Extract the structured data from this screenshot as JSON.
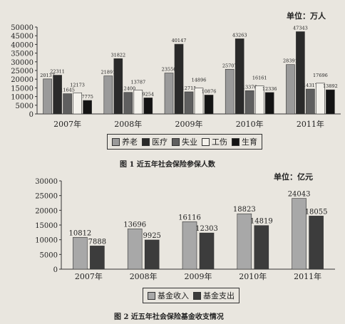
{
  "figure1": {
    "caption": "图 1   近五年社会保险参保人数",
    "unit": "单位：万人"
  },
  "figure2": {
    "caption": "图 2   近五年社会保险基金收支情况",
    "unit": "单位：亿元"
  },
  "colors": {
    "pension": "#9a9a9a",
    "medical": "#2a2a2a",
    "unemployment": "#5f5f5f",
    "injury": "#f4f2ec",
    "maternity": "#141414",
    "fund_income": "#a8a8a8",
    "fund_expense": "#3c3c3c"
  },
  "chart_data": [
    {
      "type": "bar",
      "categories": [
        "2007年",
        "2008年",
        "2009年",
        "2010年",
        "2011年"
      ],
      "series": [
        {
          "name": "养老",
          "values": [
            20137,
            21891,
            23550,
            25707,
            28391
          ]
        },
        {
          "name": "医疗",
          "values": [
            22311,
            31822,
            40147,
            43263,
            47343
          ]
        },
        {
          "name": "失业",
          "values": [
            11645,
            12400,
            12715,
            13376,
            14317
          ]
        },
        {
          "name": "工伤",
          "values": [
            12173,
            13787,
            14896,
            16161,
            17696
          ]
        },
        {
          "name": "生育",
          "values": [
            7775,
            9254,
            10876,
            12336,
            13892
          ]
        }
      ],
      "yticks": [
        0,
        5000,
        10000,
        15000,
        20000,
        25000,
        30000,
        35000,
        40000,
        45000,
        50000
      ],
      "ylim": [
        0,
        50000
      ],
      "legend_position": "bottom",
      "grid": false
    },
    {
      "type": "bar",
      "categories": [
        "2007年",
        "2008年",
        "2009年",
        "2010年",
        "2011年"
      ],
      "series": [
        {
          "name": "基金收入",
          "values": [
            10812,
            13696,
            16116,
            18823,
            24043
          ]
        },
        {
          "name": "基金支出",
          "values": [
            7888,
            9925,
            12303,
            14819,
            18055
          ]
        }
      ],
      "yticks": [
        0,
        5000,
        10000,
        15000,
        20000,
        25000,
        30000
      ],
      "ylim": [
        0,
        30000
      ],
      "legend_position": "bottom",
      "grid": false
    }
  ]
}
